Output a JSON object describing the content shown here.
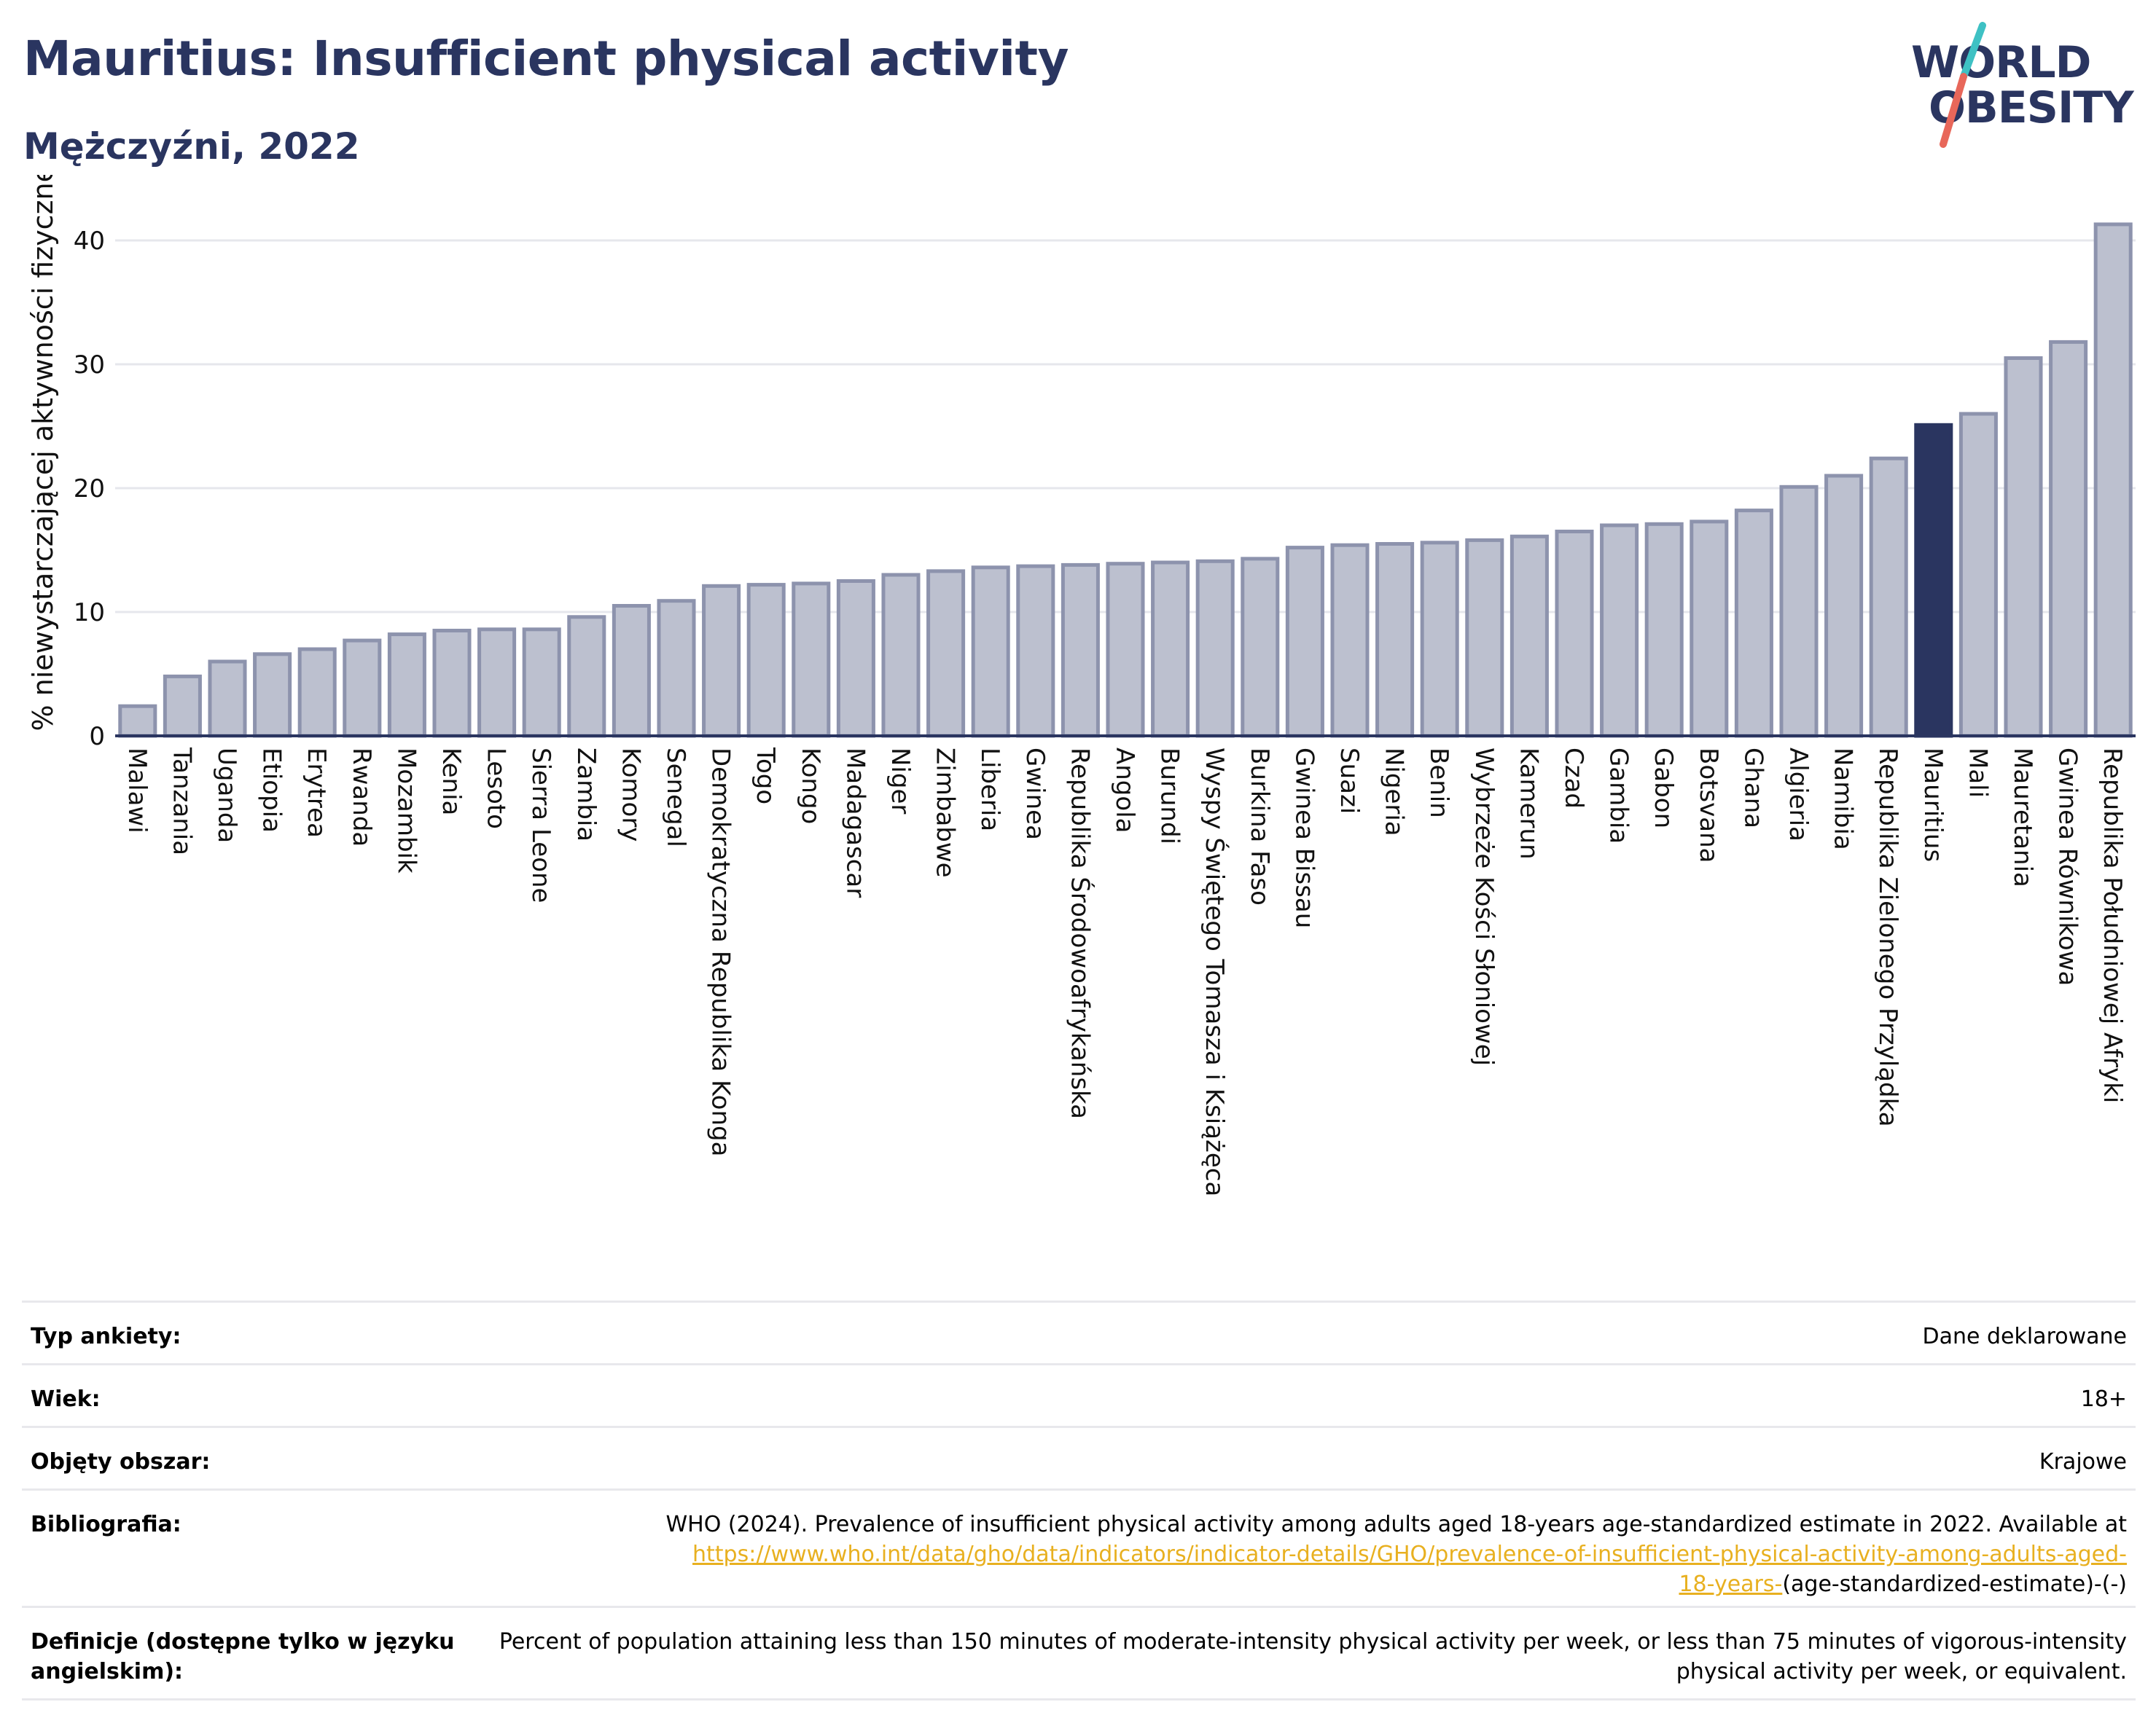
{
  "header": {
    "title": "Mauritius: Insufficient physical activity",
    "subtitle": "Mężczyźni, 2022"
  },
  "logo": {
    "line1": "WORLD",
    "line2": "OBESITY"
  },
  "colors": {
    "bar_default": "#bcc0cf",
    "bar_border": "#8d93ad",
    "bar_highlight": "#2a3560",
    "title": "#2a3560",
    "link": "#e8b020",
    "logo_teal": "#3ec1c4",
    "logo_coral": "#e8675a"
  },
  "chart_data": {
    "type": "bar",
    "title": "",
    "ylabel": "% niewystarczającej aktywności fizycznej",
    "xlabel": "",
    "ylim": [
      0,
      43
    ],
    "yticks": [
      0,
      10,
      20,
      30,
      40
    ],
    "grid": true,
    "highlight": "Mauritius",
    "categories": [
      "Malawi",
      "Tanzania",
      "Uganda",
      "Etiopia",
      "Erytrea",
      "Rwanda",
      "Mozambik",
      "Kenia",
      "Lesoto",
      "Sierra Leone",
      "Zambia",
      "Komory",
      "Senegal",
      "Demokratyczna Republika Konga",
      "Togo",
      "Kongo",
      "Madagascar",
      "Niger",
      "Zimbabwe",
      "Liberia",
      "Gwinea",
      "Republika Środowoafrykańska",
      "Angola",
      "Burundi",
      "Wyspy Świętego Tomasza i Książęca",
      "Burkina Faso",
      "Gwinea Bissau",
      "Suazi",
      "Nigeria",
      "Benin",
      "Wybrzeże Kości Słoniowej",
      "Kamerun",
      "Czad",
      "Gambia",
      "Gabon",
      "Botsvana",
      "Ghana",
      "Algieria",
      "Namibia",
      "Republika Zielonego Przylądka",
      "Mauritius",
      "Mali",
      "Mauretania",
      "Gwinea Równikowa",
      "Republika Południowej Afryki"
    ],
    "values": [
      2.4,
      4.8,
      6.0,
      6.6,
      7.0,
      7.7,
      8.2,
      8.5,
      8.6,
      8.6,
      9.6,
      10.5,
      10.9,
      12.1,
      12.2,
      12.3,
      12.5,
      13.0,
      13.3,
      13.6,
      13.7,
      13.8,
      13.9,
      14.0,
      14.1,
      14.3,
      15.2,
      15.4,
      15.5,
      15.6,
      15.8,
      16.1,
      16.5,
      17.0,
      17.1,
      17.3,
      18.2,
      20.1,
      21.0,
      22.4,
      25.1,
      26.0,
      30.5,
      31.8,
      41.3
    ]
  },
  "info_table": {
    "survey_type_label": "Typ ankiety:",
    "survey_type_value": "Dane deklarowane",
    "age_label": "Wiek:",
    "age_value": "18+",
    "area_label": "Objęty obszar:",
    "area_value": "Krajowe",
    "biblio_label": "Bibliografia:",
    "biblio_text": "WHO (2024). Prevalence of insufficient physical activity among adults aged 18-years age-standardized estimate in 2022. Available at",
    "biblio_link_1": "https://www.who.int/data/gho/data/indicators/indicator-details/GHO/prevalence-of-insufficient-physical-activity-among-adults-aged-",
    "biblio_link_2": "18-years-",
    "biblio_tail": "(age-standardized-estimate)-(-)",
    "definitions_label": "Definicje (dostępne tylko w języku angielskim):",
    "definitions_value": "Percent of population attaining less than 150 minutes of moderate-intensity physical activity per week, or less than 75 minutes of vigorous-intensity physical activity per week, or equivalent."
  }
}
